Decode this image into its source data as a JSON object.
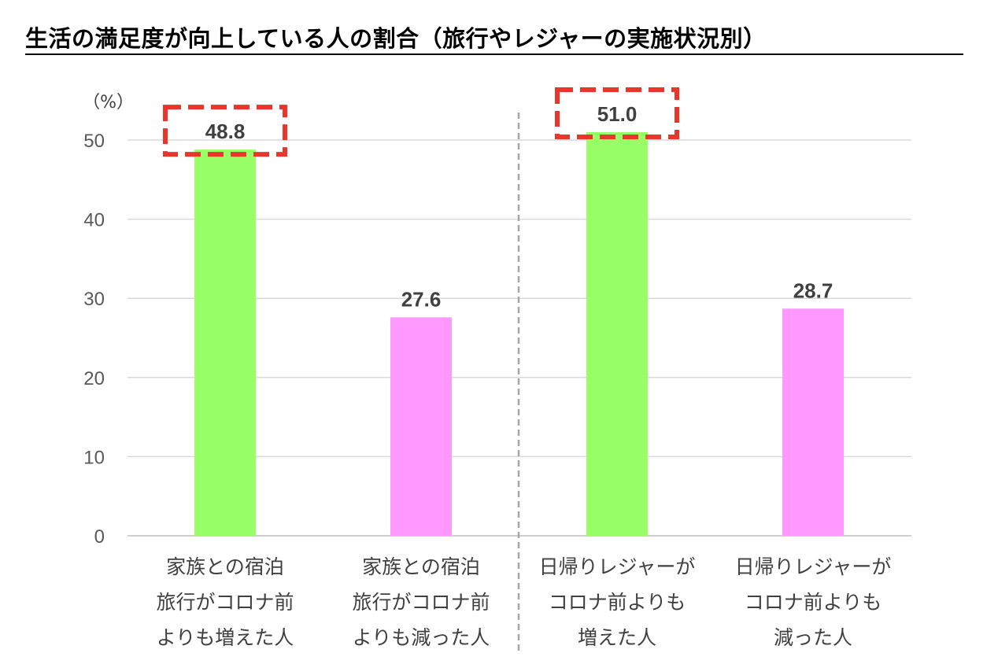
{
  "title": "生活の満足度が向上している人の割合（旅行やレジャーの実施状況別）",
  "colors": {
    "increased": "#99ff66",
    "decreased": "#ff99ff",
    "highlight": "#e8362a",
    "grid": "#d9d9d9",
    "divider": "#a6a6a6"
  },
  "chart_data": {
    "type": "bar",
    "unit_label": "（%）",
    "ylim": [
      0,
      50
    ],
    "yticks": [
      0,
      10,
      20,
      30,
      40,
      50
    ],
    "grid": true,
    "categories": [
      [
        "家族との宿泊",
        "旅行がコロナ前",
        "よりも増えた人"
      ],
      [
        "家族との宿泊",
        "旅行がコロナ前",
        "よりも減った人"
      ],
      [
        "日帰りレジャーが",
        "コロナ前よりも",
        "増えた人"
      ],
      [
        "日帰りレジャーが",
        "コロナ前よりも",
        "減った人"
      ]
    ],
    "values": [
      48.8,
      27.6,
      51.0,
      28.7
    ],
    "value_labels": [
      "48.8",
      "27.6",
      "51.0",
      "28.7"
    ],
    "bar_colors": [
      "#99ff66",
      "#ff99ff",
      "#99ff66",
      "#ff99ff"
    ],
    "highlighted": [
      true,
      false,
      true,
      false
    ]
  }
}
